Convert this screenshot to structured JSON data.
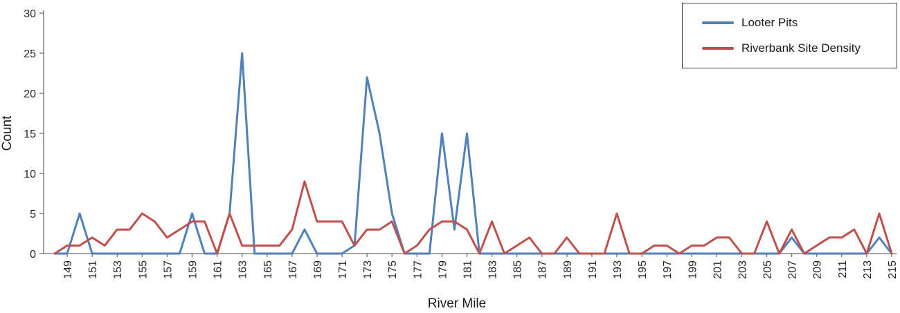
{
  "chart_data": {
    "type": "line",
    "xlabel": "River Mile",
    "ylabel": "Count",
    "ylim": [
      0,
      30
    ],
    "y_ticks": [
      0,
      5,
      10,
      15,
      20,
      25,
      30
    ],
    "x_tick_start": 149,
    "x_tick_step": 2,
    "grid": false,
    "legend_position": "top-right",
    "x": [
      148,
      149,
      150,
      151,
      152,
      153,
      154,
      155,
      156,
      157,
      158,
      159,
      160,
      161,
      162,
      163,
      164,
      165,
      166,
      167,
      168,
      169,
      170,
      171,
      172,
      173,
      174,
      175,
      176,
      177,
      178,
      179,
      180,
      181,
      182,
      183,
      184,
      185,
      186,
      187,
      188,
      189,
      190,
      191,
      192,
      193,
      194,
      195,
      196,
      197,
      198,
      199,
      200,
      201,
      202,
      203,
      204,
      205,
      206,
      207,
      208,
      209,
      210,
      211,
      212,
      213,
      214,
      215
    ],
    "series": [
      {
        "name": "Looter Pits",
        "color": "#4F81BD",
        "values": [
          0,
          0,
          5,
          0,
          0,
          0,
          0,
          0,
          0,
          0,
          0,
          5,
          0,
          0,
          5,
          25,
          0,
          0,
          0,
          0,
          3,
          0,
          0,
          0,
          1,
          22,
          15,
          5,
          0,
          0,
          0,
          15,
          3,
          15,
          0,
          0,
          0,
          0,
          0,
          0,
          0,
          0,
          0,
          0,
          0,
          0,
          0,
          0,
          0,
          0,
          0,
          0,
          0,
          0,
          0,
          0,
          0,
          0,
          0,
          2,
          0,
          0,
          0,
          0,
          0,
          0,
          2,
          0
        ]
      },
      {
        "name": "Riverbank Site Density",
        "color": "#C0504D",
        "values": [
          0,
          1,
          1,
          2,
          1,
          3,
          3,
          5,
          4,
          2,
          3,
          4,
          4,
          0,
          5,
          1,
          1,
          1,
          1,
          3,
          9,
          4,
          4,
          4,
          1,
          3,
          3,
          4,
          0,
          1,
          3,
          4,
          4,
          3,
          0,
          4,
          0,
          1,
          2,
          0,
          0,
          2,
          0,
          0,
          0,
          5,
          0,
          0,
          1,
          1,
          0,
          1,
          1,
          2,
          2,
          0,
          0,
          4,
          0,
          3,
          0,
          1,
          2,
          2,
          3,
          0,
          5,
          0
        ]
      }
    ]
  }
}
